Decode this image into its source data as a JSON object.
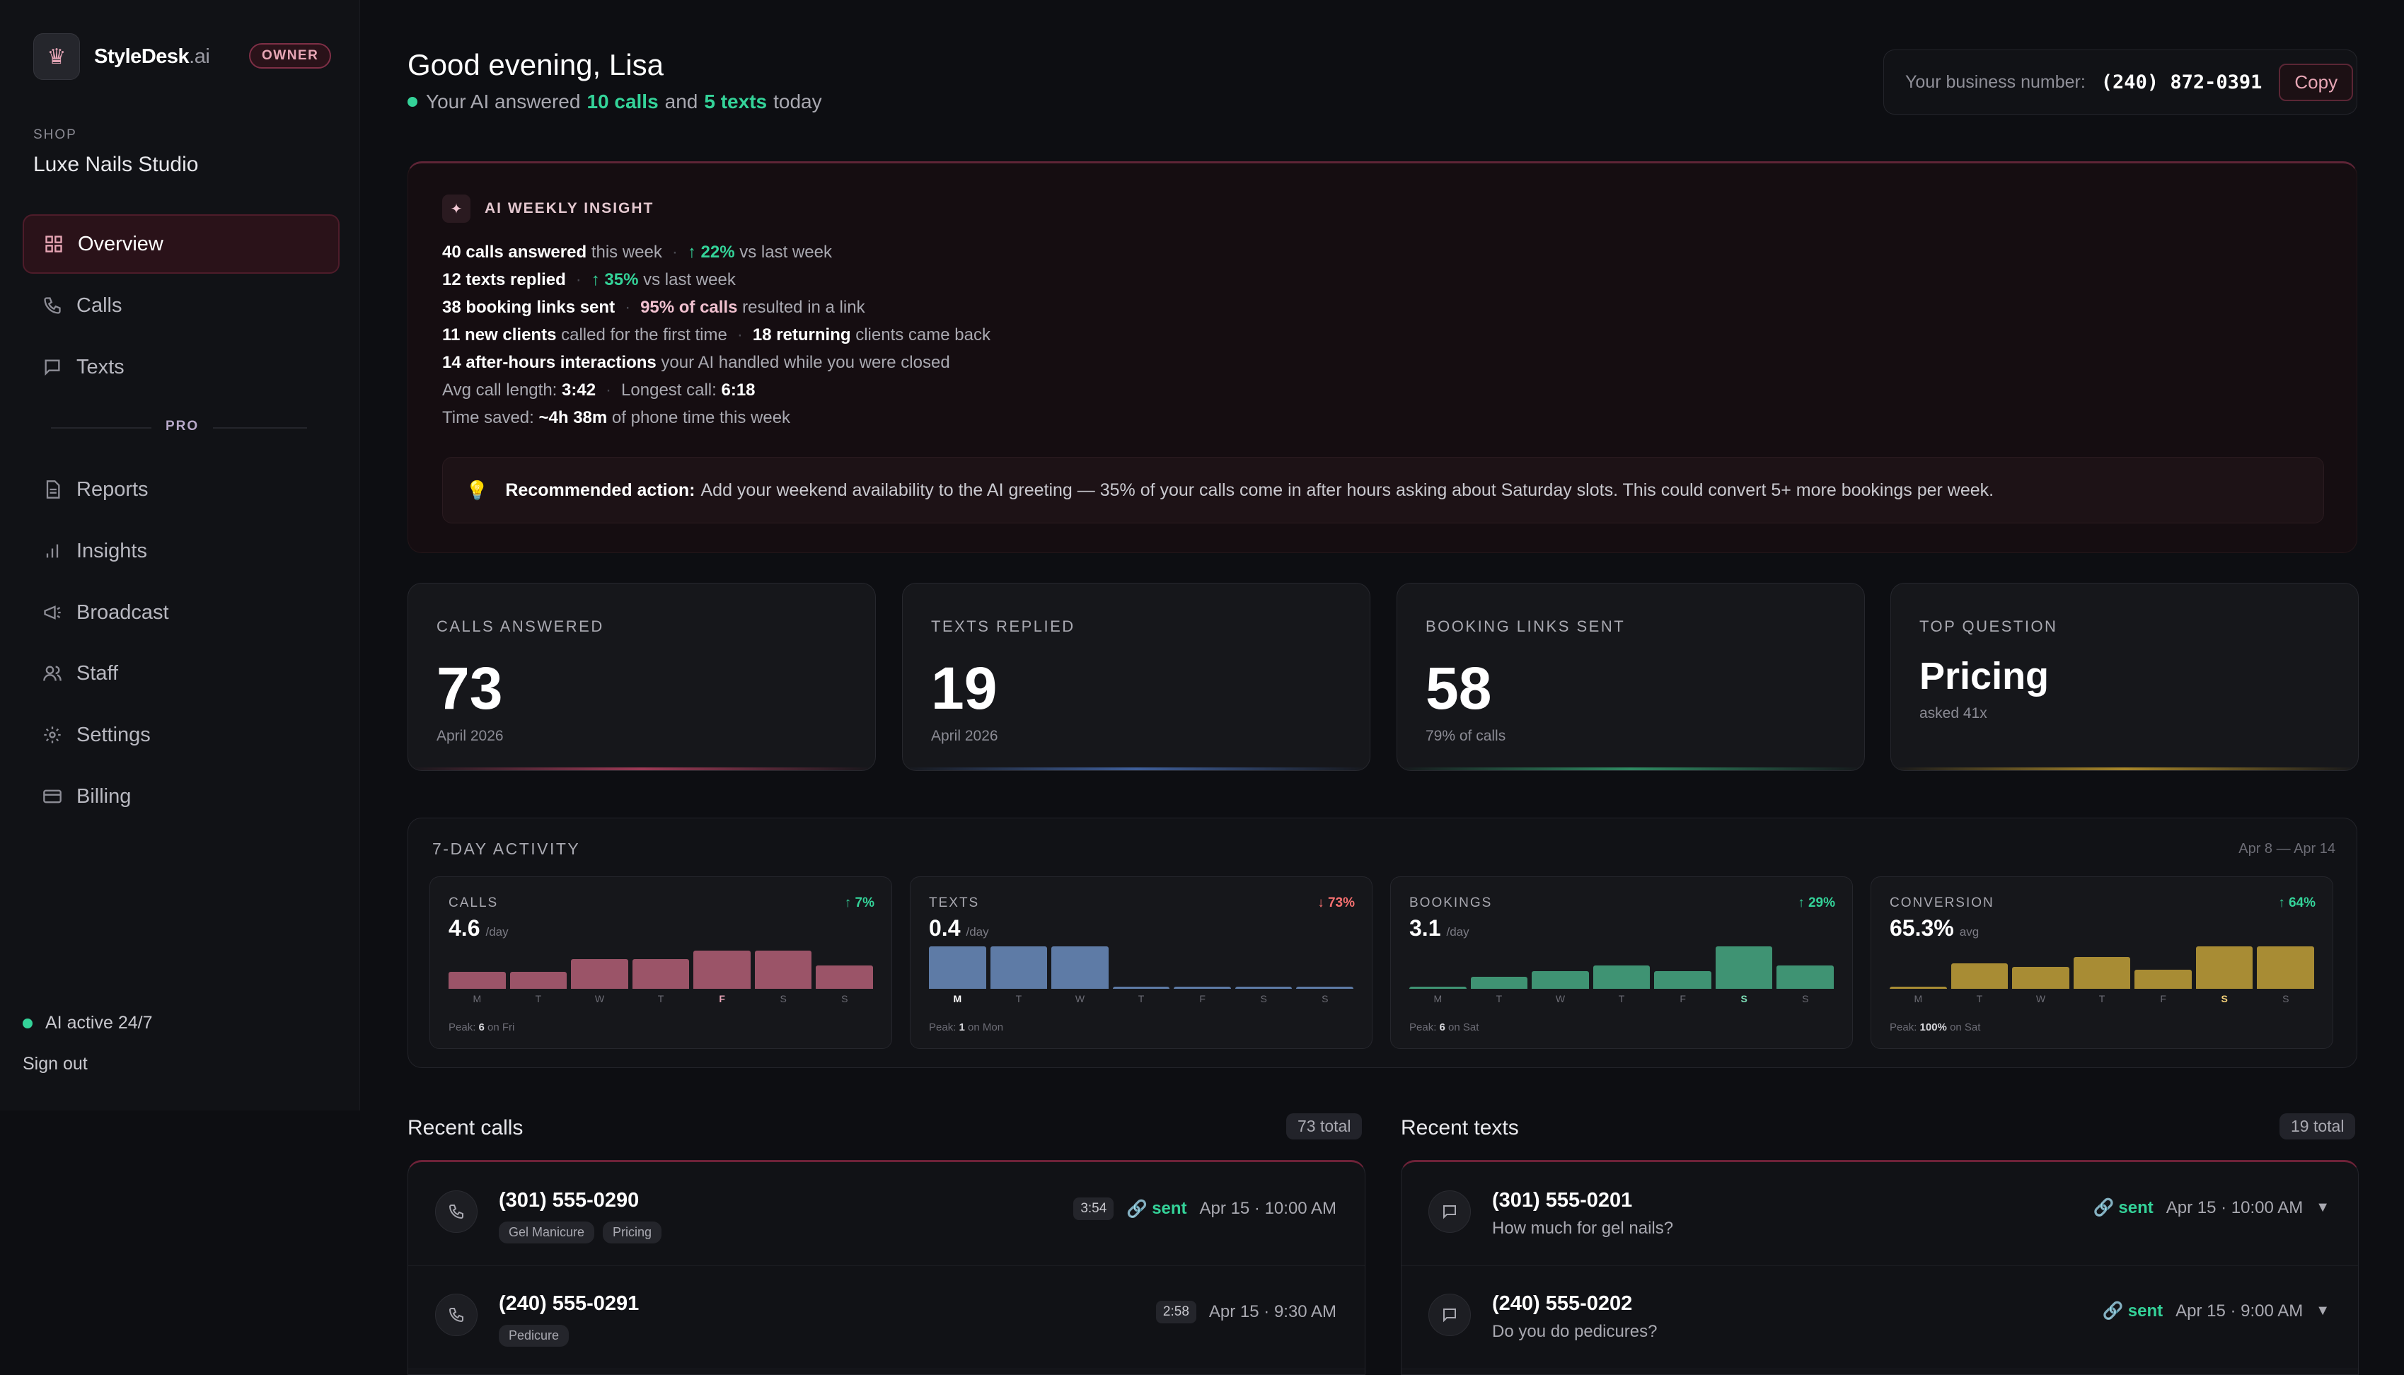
{
  "brand": {
    "name": "StyleDesk",
    "suffix": ".ai",
    "role_badge": "OWNER"
  },
  "shop": {
    "label": "SHOP",
    "name": "Luxe Nails Studio"
  },
  "nav": {
    "overview": "Overview",
    "calls": "Calls",
    "texts": "Texts",
    "pro_label": "PRO",
    "reports": "Reports",
    "insights": "Insights",
    "broadcast": "Broadcast",
    "staff": "Staff",
    "settings": "Settings",
    "billing": "Billing"
  },
  "sidebar_footer": {
    "status": "AI active 24/7",
    "signout": "Sign out"
  },
  "header": {
    "greeting": "Good evening, Lisa",
    "sub_prefix": "Your AI answered",
    "calls_today": "10 calls",
    "sub_and": "and",
    "texts_today": "5 texts",
    "sub_suffix": "today",
    "business_label": "Your business number:",
    "business_number": "(240) 872-0391",
    "copy_label": "Copy"
  },
  "insight": {
    "title": "AI WEEKLY INSIGHT",
    "l1_a": "40 calls answered",
    "l1_b": "this week",
    "l1_c": "↑ 22%",
    "l1_d": "vs last week",
    "l2_a": "12 texts replied",
    "l2_c": "↑ 35%",
    "l2_d": "vs last week",
    "l3_a": "38 booking links sent",
    "l3_c": "95% of calls",
    "l3_d": "resulted in a link",
    "l4_a": "11 new clients",
    "l4_b": "called for the first time",
    "l4_c": "18 returning",
    "l4_d": "clients came back",
    "l5_a": "14 after-hours interactions",
    "l5_b": "your AI handled while you were closed",
    "l6_a": "Avg call length:",
    "l6_b": "3:42",
    "l6_c": "Longest call:",
    "l6_d": "6:18",
    "l7_a": "Time saved:",
    "l7_b": "~4h 38m",
    "l7_c": "of phone time this week",
    "rec_label": "Recommended action:",
    "rec_text": "Add your weekend availability to the AI greeting — 35% of your calls come in after hours asking about Saturday slots. This could convert 5+ more bookings per week."
  },
  "stats": {
    "calls": {
      "label": "CALLS ANSWERED",
      "value": "73",
      "note": "April 2026",
      "color": "#9d3a56"
    },
    "texts": {
      "label": "TEXTS REPLIED",
      "value": "19",
      "note": "April 2026",
      "color": "#3f5f9a"
    },
    "bookings": {
      "label": "BOOKING LINKS SENT",
      "value": "58",
      "note": "79% of calls",
      "color": "#2f8a62"
    },
    "top": {
      "label": "TOP QUESTION",
      "value": "Pricing",
      "note": "asked 41x",
      "color": "#a8872a"
    }
  },
  "activity": {
    "title": "7-DAY ACTIVITY",
    "range": "Apr 8 — Apr 14",
    "days": [
      "M",
      "T",
      "W",
      "T",
      "F",
      "S",
      "S"
    ],
    "cards": [
      {
        "label": "CALLS",
        "change": "↑ 7%",
        "value": "4.6",
        "unit": "/day",
        "peak_prefix": "Peak:",
        "peak_val": "6",
        "peak_suffix": "on Fri",
        "color": "#9b5468",
        "values": [
          0.4,
          0.4,
          0.7,
          0.7,
          0.9,
          0.9,
          0.55
        ],
        "highlight": 4
      },
      {
        "label": "TEXTS",
        "change": "↓ 73%",
        "value": "0.4",
        "unit": "/day",
        "peak_prefix": "Peak:",
        "peak_val": "1",
        "peak_suffix": "on Mon",
        "color": "#5e7ba6",
        "values": [
          1,
          1,
          1,
          0.04,
          0.04,
          0.04,
          0.04
        ],
        "highlight": 0
      },
      {
        "label": "BOOKINGS",
        "change": "↑ 29%",
        "value": "3.1",
        "unit": "/day",
        "peak_prefix": "Peak:",
        "peak_val": "6",
        "peak_suffix": "on Sat",
        "color": "#3f9373",
        "values": [
          0.05,
          0.28,
          0.42,
          0.55,
          0.42,
          1,
          0.55
        ],
        "highlight": 5
      },
      {
        "label": "CONVERSION",
        "change": "↑ 64%",
        "value": "65.3%",
        "unit": "avg",
        "peak_prefix": "Peak:",
        "peak_val": "100%",
        "peak_suffix": "on Sat",
        "color": "#a88c34",
        "values": [
          0.05,
          0.6,
          0.52,
          0.75,
          0.45,
          1,
          1
        ],
        "highlight": 5
      }
    ]
  },
  "recent_calls": {
    "title": "Recent calls",
    "count": "73 total",
    "items": [
      {
        "phone": "(301) 555-0290",
        "tags": [
          "Gel Manicure",
          "Pricing"
        ],
        "duration": "3:54",
        "status": "sent",
        "time": "Apr 15 · 10:00 AM"
      },
      {
        "phone": "(240) 555-0291",
        "tags": [
          "Pedicure"
        ],
        "duration": "2:58",
        "time": "Apr 15 · 9:30 AM"
      }
    ]
  },
  "recent_texts": {
    "title": "Recent texts",
    "count": "19 total",
    "items": [
      {
        "phone": "(301) 555-0201",
        "message": "How much for gel nails?",
        "status": "sent",
        "time": "Apr 15 · 10:00 AM"
      },
      {
        "phone": "(240) 555-0202",
        "message": "Do you do pedicures?",
        "status": "sent",
        "time": "Apr 15 · 9:00 AM"
      }
    ]
  }
}
